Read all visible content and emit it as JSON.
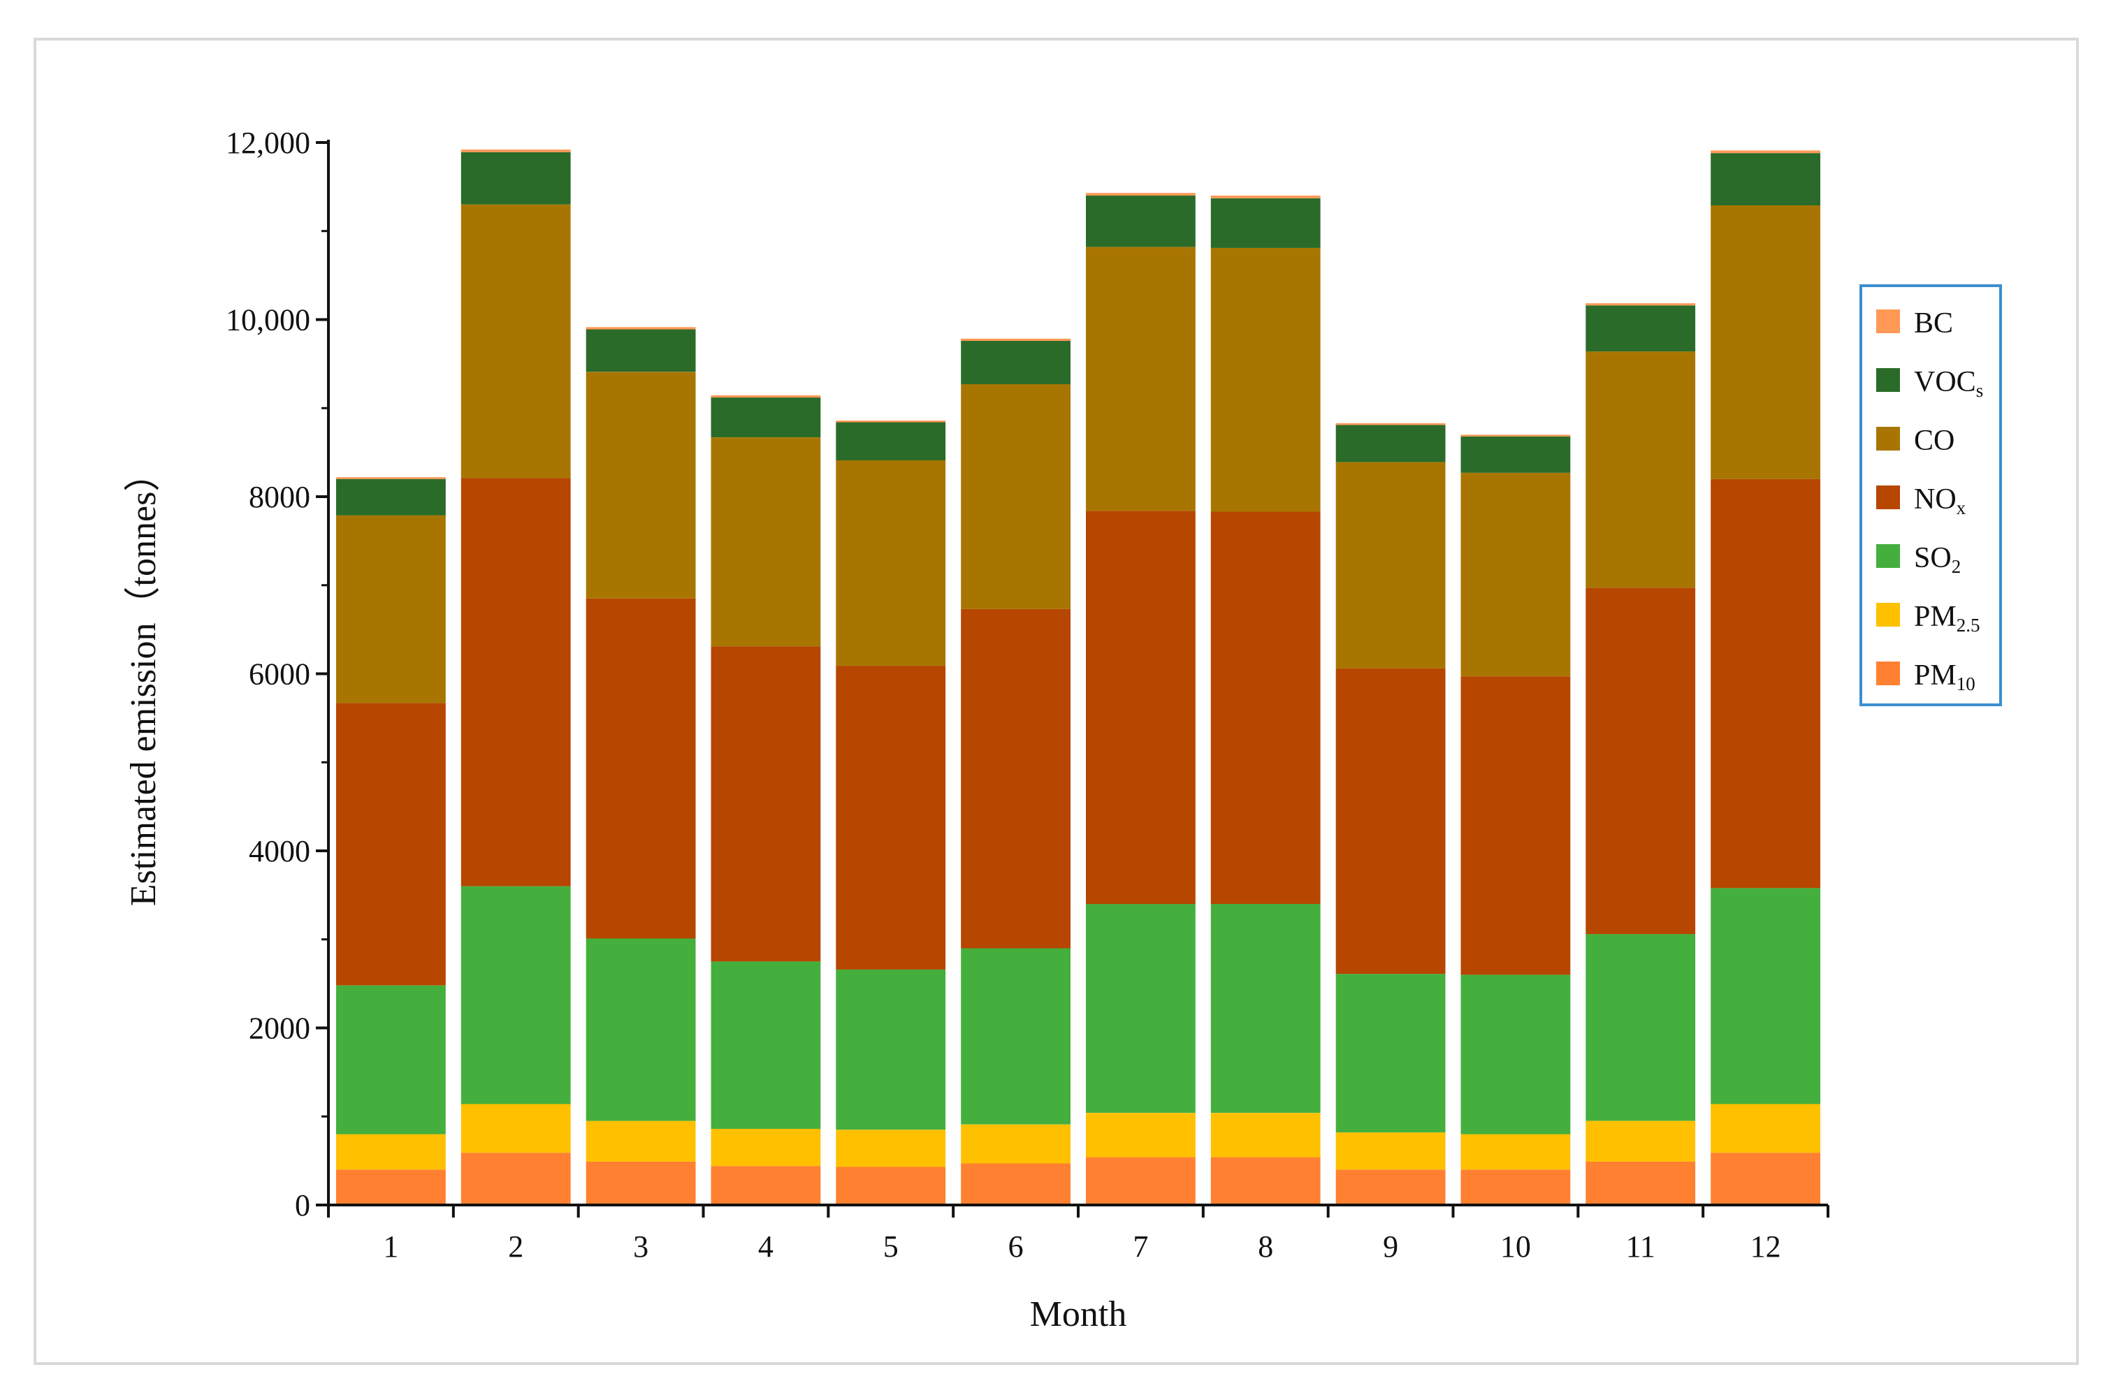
{
  "chart_data": {
    "type": "bar",
    "stacked": true,
    "title": "",
    "xlabel": "Month",
    "ylabel": "Estimated emission（tonnes）",
    "ylim": [
      0,
      12000
    ],
    "y_ticks": [
      0,
      2000,
      4000,
      6000,
      8000,
      10000,
      12000
    ],
    "y_tick_labels": [
      "0",
      "2000",
      "4000",
      "6000",
      "8000",
      "10,000",
      "12,000"
    ],
    "categories": [
      "1",
      "2",
      "3",
      "4",
      "5",
      "6",
      "7",
      "8",
      "9",
      "10",
      "11",
      "12"
    ],
    "legend_position": "right",
    "series": [
      {
        "name": "PM10",
        "label_main": "PM",
        "label_sub": "10",
        "color": "#FF8030",
        "values": [
          400,
          590,
          490,
          440,
          430,
          470,
          540,
          540,
          400,
          400,
          490,
          590
        ]
      },
      {
        "name": "PM2.5",
        "label_main": "PM",
        "label_sub": "2.5",
        "color": "#FFC000",
        "values": [
          400,
          550,
          460,
          420,
          420,
          440,
          500,
          500,
          420,
          400,
          460,
          550
        ]
      },
      {
        "name": "SO2",
        "label_main": "SO",
        "label_sub": "2",
        "color": "#44AF3D",
        "values": [
          1680,
          2460,
          2060,
          1890,
          1810,
          1990,
          2360,
          2360,
          1790,
          1800,
          2110,
          2440
        ]
      },
      {
        "name": "NOx",
        "label_main": "NO",
        "label_sub": "x",
        "color": "#B64600",
        "values": [
          3190,
          4610,
          3840,
          3560,
          3430,
          3830,
          4440,
          4430,
          3450,
          3370,
          3910,
          4620
        ]
      },
      {
        "name": "CO",
        "label_main": "CO",
        "label_sub": "",
        "color": "#A87600",
        "values": [
          2120,
          3090,
          2560,
          2360,
          2320,
          2540,
          2980,
          2980,
          2330,
          2300,
          2670,
          3090
        ]
      },
      {
        "name": "VOCs",
        "label_main": "VOC",
        "label_sub": "s",
        "color": "#2A6B2A",
        "values": [
          410,
          590,
          480,
          450,
          430,
          490,
          580,
          560,
          420,
          410,
          520,
          590
        ]
      },
      {
        "name": "BC",
        "label_main": "BC",
        "label_sub": "",
        "color": "#FF9955",
        "values": [
          20,
          30,
          25,
          25,
          20,
          25,
          30,
          30,
          20,
          20,
          25,
          30
        ]
      }
    ]
  }
}
